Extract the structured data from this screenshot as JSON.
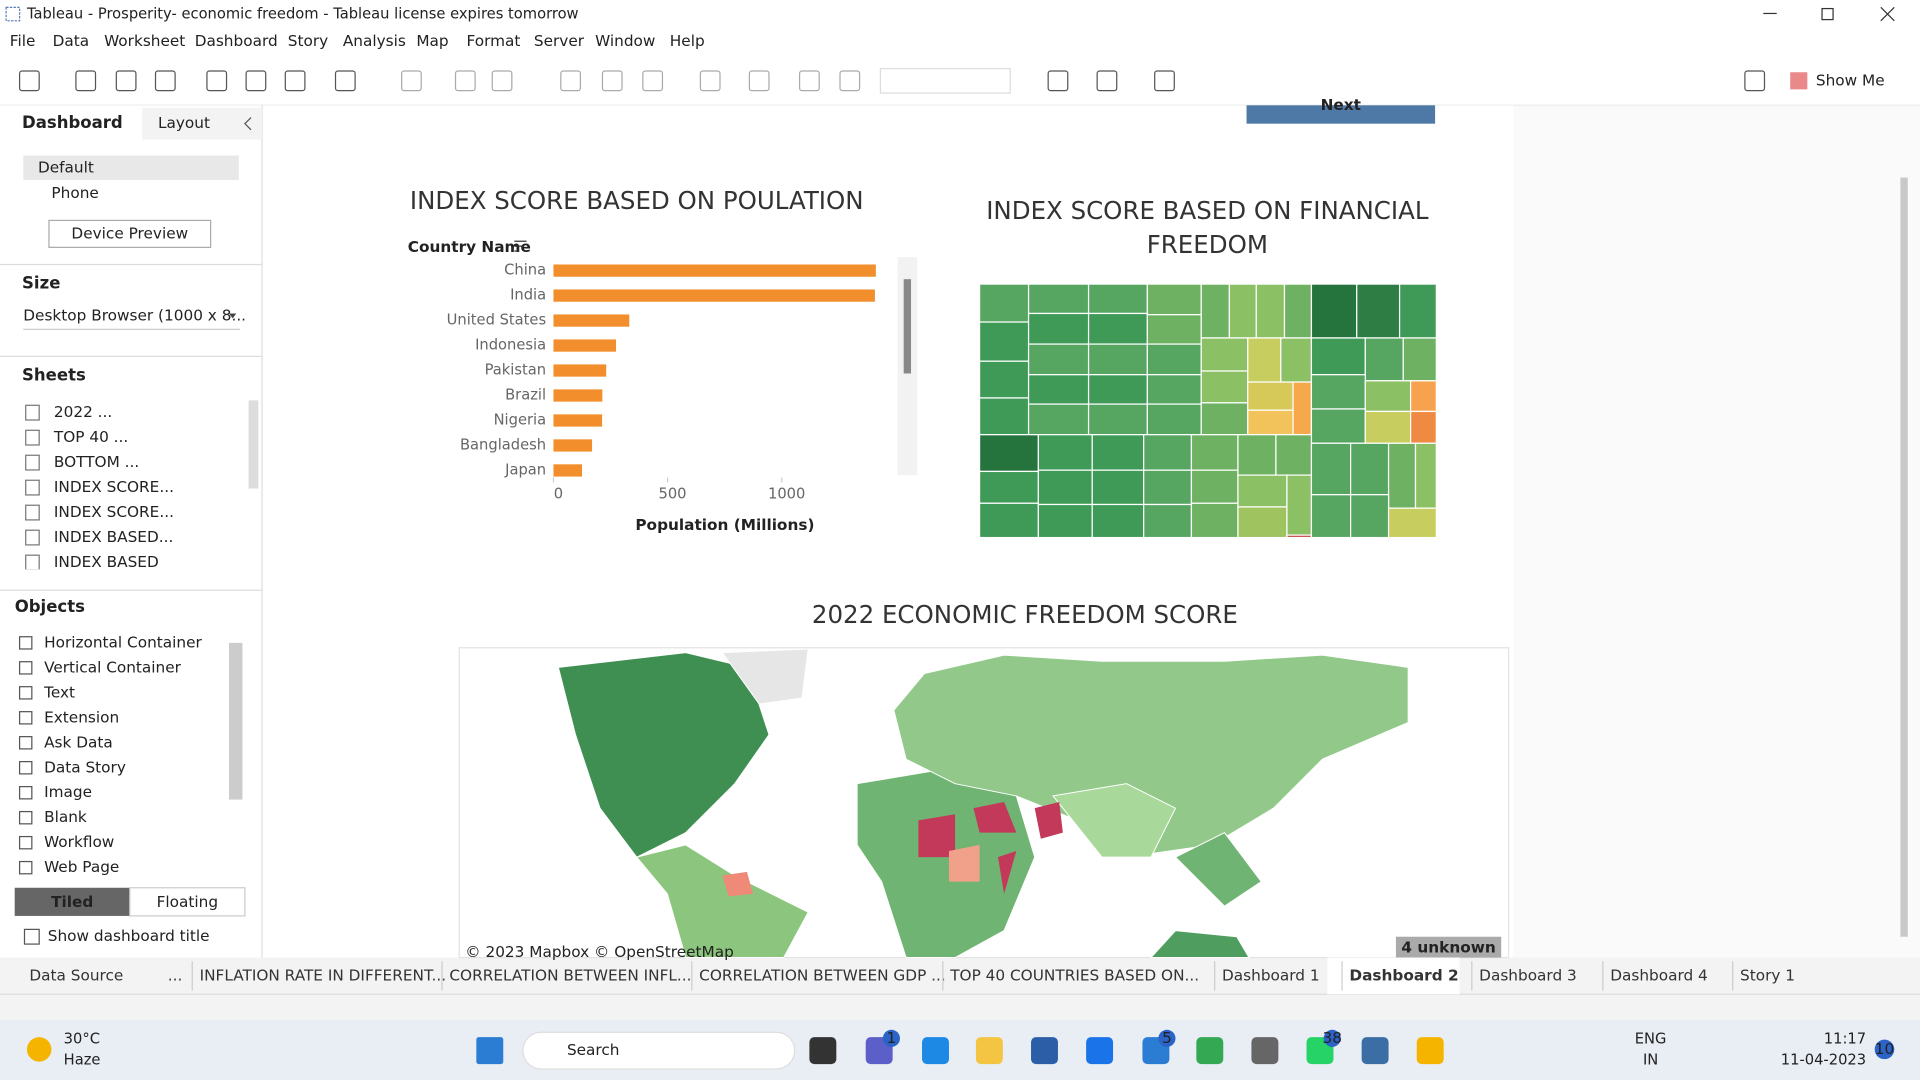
{
  "window": {
    "title": "Tableau - Prosperity- economic freedom - Tableau license expires tomorrow"
  },
  "menu": [
    "File",
    "Data",
    "Worksheet",
    "Dashboard",
    "Story",
    "Analysis",
    "Map",
    "Format",
    "Server",
    "Window",
    "Help"
  ],
  "toolbar": {
    "show_me": "Show Me"
  },
  "left_panel": {
    "tabs": [
      "Dashboard",
      "Layout"
    ],
    "device": {
      "options": [
        "Default",
        "Phone"
      ],
      "preview_button": "Device Preview"
    },
    "size": {
      "heading": "Size",
      "value": "Desktop Browser (1000 x 8..."
    },
    "sheets": {
      "heading": "Sheets",
      "items": [
        "2022 ...",
        "TOP 40 ...",
        "BOTTOM ...",
        "INDEX SCORE...",
        "INDEX SCORE...",
        "INDEX BASED...",
        "INDEX BASED"
      ]
    },
    "objects": {
      "heading": "Objects",
      "items": [
        "Horizontal Container",
        "Vertical Container",
        "Text",
        "Extension",
        "Ask Data",
        "Data Story",
        "Image",
        "Blank",
        "Workflow",
        "Web Page"
      ],
      "modes": [
        "Tiled",
        "Floating"
      ],
      "show_title": "Show dashboard title"
    }
  },
  "dashboard": {
    "next_button": "Next",
    "treemap_title": [
      "INDEX SCORE BASED ON FINANCIAL",
      "FREEDOM"
    ],
    "map_title": "2022 ECONOMIC FREEDOM SCORE",
    "map_attribution": "© 2023 Mapbox © OpenStreetMap",
    "map_unknown": "4 unknown"
  },
  "chart_data": {
    "type": "bar",
    "orientation": "horizontal",
    "title": "INDEX SCORE BASED ON POULATION",
    "y_header": "Country Name",
    "x_label": "Population (Millions)",
    "categories": [
      "China",
      "India",
      "United States",
      "Indonesia",
      "Pakistan",
      "Brazil",
      "Nigeria",
      "Bangladesh",
      "Japan"
    ],
    "values": [
      1412,
      1408,
      332,
      274,
      231,
      214,
      213,
      169,
      125
    ],
    "color": "#f28e2b",
    "xlim": [
      0,
      1550
    ],
    "xticks": [
      0,
      500,
      1000
    ]
  },
  "sheet_tabs": {
    "data_source": "Data Source",
    "more": "...",
    "tabs": [
      "INFLATION RATE IN DIFFERENT...",
      "CORRELATION BETWEEN INFL...",
      "CORRELATION BETWEEN GDP ...",
      "TOP 40 COUNTRIES BASED ON...",
      "Dashboard 1",
      "Dashboard 2",
      "Dashboard 3",
      "Dashboard 4",
      "Story 1"
    ],
    "active": 5
  },
  "taskbar": {
    "weather": {
      "temp": "30°C",
      "condition": "Haze"
    },
    "search": "Search",
    "badges": [
      "1",
      "5",
      "38"
    ],
    "language": [
      "ENG",
      "IN"
    ],
    "time": "11:17",
    "date": "11-04-2023",
    "notifications": "10"
  }
}
